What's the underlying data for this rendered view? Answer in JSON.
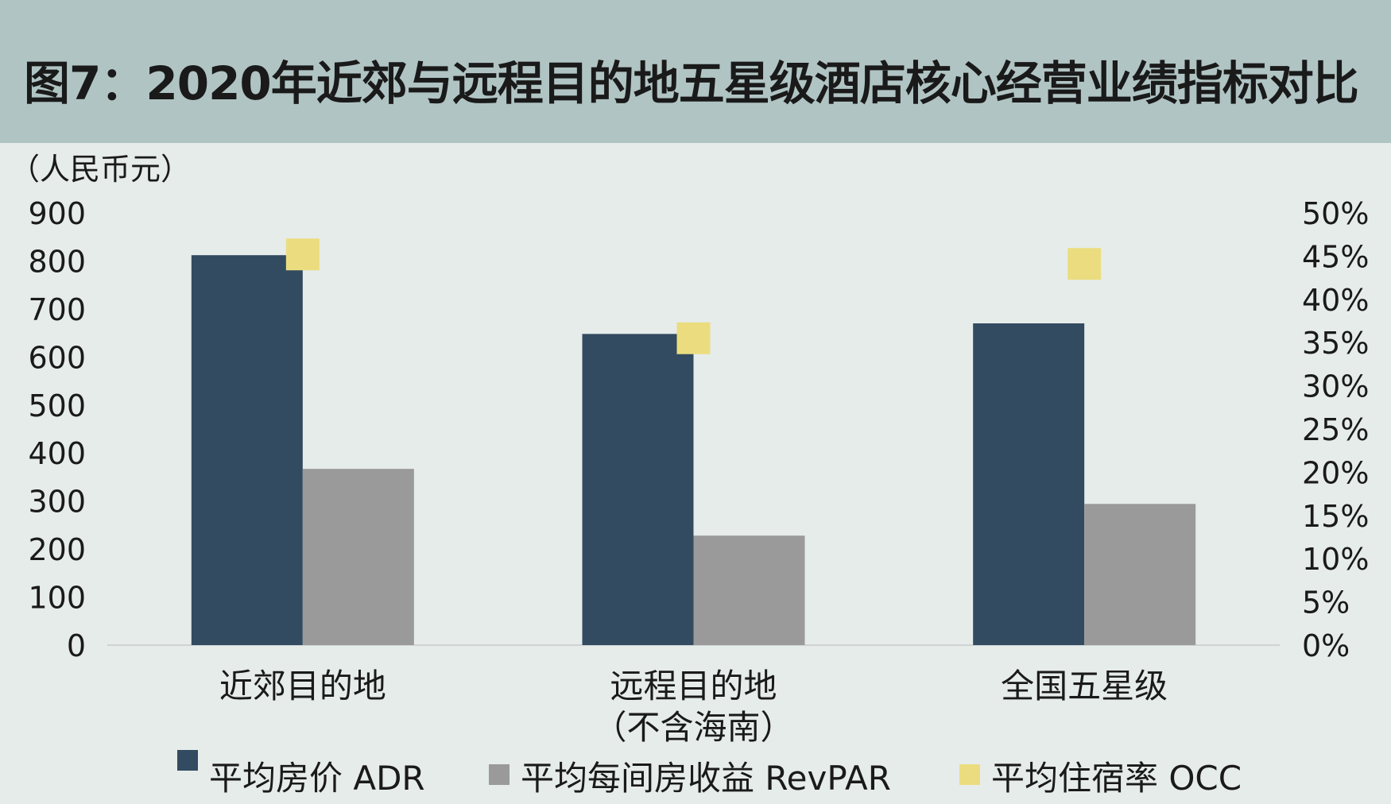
{
  "title": "图7：2020年近郊与远程目的地五星级酒店核心经营业绩指标对比",
  "chart_data": {
    "type": "bar",
    "y_unit_label": "（人民币元）",
    "categories": [
      [
        "近郊目的地"
      ],
      [
        "远程目的地",
        "（不含海南）"
      ],
      [
        "全国五星级"
      ]
    ],
    "y_left": {
      "min": 0,
      "max": 900,
      "ticks": [
        "0",
        "100",
        "200",
        "300",
        "400",
        "500",
        "600",
        "700",
        "800",
        "900"
      ]
    },
    "y_right": {
      "min": 0,
      "max": 50,
      "ticks": [
        "0%",
        "5%",
        "10%",
        "15%",
        "20%",
        "25%",
        "30%",
        "35%",
        "40%",
        "45%",
        "50%"
      ]
    },
    "series": [
      {
        "name": "平均房价 ADR",
        "axis": "left",
        "kind": "bar",
        "color": "#324b61",
        "values": [
          812,
          648,
          670
        ]
      },
      {
        "name": "平均每间房收益 RevPAR",
        "axis": "left",
        "kind": "bar",
        "color": "#999a99",
        "values": [
          367,
          228,
          294
        ]
      },
      {
        "name": "平均住宿率 OCC",
        "axis": "right",
        "kind": "marker",
        "color": "#ebdd7f",
        "values": [
          45.2,
          35.5,
          44.1
        ]
      }
    ],
    "grid": false,
    "legend_position": "bottom"
  }
}
